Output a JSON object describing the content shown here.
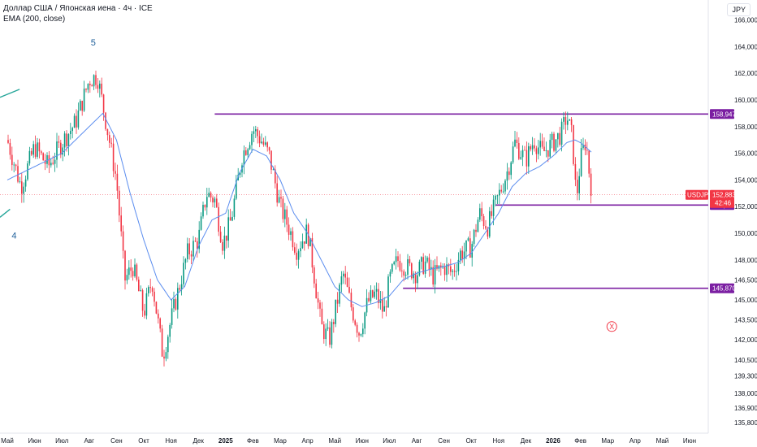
{
  "header": {
    "symbol_title": "Доллар США / Японская иена · 4ч · ICE",
    "indicator": "EMA (200, close)",
    "currency_button": "JPY"
  },
  "chart_data": {
    "type": "candlestick",
    "symbol": "USDJPY",
    "ylim": [
      135.0,
      167.5
    ],
    "y_ticks": [
      135.8,
      136.9,
      138.0,
      139.3,
      140.5,
      142.0,
      143.5,
      145.0,
      146.5,
      148.0,
      150.0,
      152.0,
      154.0,
      156.0,
      158.0,
      160.0,
      162.0,
      164.0,
      166.0
    ],
    "y_tick_labels": [
      "135,800",
      "136,900",
      "138,000",
      "139,300",
      "140,500",
      "142,000",
      "143,500",
      "145,000",
      "146,500",
      "148,000",
      "150,000",
      "152,000",
      "154,000",
      "156,000",
      "158,000",
      "160,000",
      "162,000",
      "164,000",
      "166,000"
    ],
    "x_tick_labels": [
      {
        "label": "Май",
        "bold": false
      },
      {
        "label": "Июн",
        "bold": false
      },
      {
        "label": "Июл",
        "bold": false
      },
      {
        "label": "Авг",
        "bold": false
      },
      {
        "label": "Сен",
        "bold": false
      },
      {
        "label": "Окт",
        "bold": false
      },
      {
        "label": "Ноя",
        "bold": false
      },
      {
        "label": "Дек",
        "bold": false
      },
      {
        "label": "2025",
        "bold": true
      },
      {
        "label": "Фев",
        "bold": false
      },
      {
        "label": "Мар",
        "bold": false
      },
      {
        "label": "Апр",
        "bold": false
      },
      {
        "label": "Май",
        "bold": false
      },
      {
        "label": "Июн",
        "bold": false
      },
      {
        "label": "Июл",
        "bold": false
      },
      {
        "label": "Авг",
        "bold": false
      },
      {
        "label": "Сен",
        "bold": false
      },
      {
        "label": "Окт",
        "bold": false
      },
      {
        "label": "Ноя",
        "bold": false
      },
      {
        "label": "Дек",
        "bold": false
      },
      {
        "label": "2026",
        "bold": true
      },
      {
        "label": "Фев",
        "bold": false
      },
      {
        "label": "Мар",
        "bold": false
      },
      {
        "label": "Апр",
        "bold": false
      },
      {
        "label": "Май",
        "bold": false
      },
      {
        "label": "Июн",
        "bold": false
      }
    ],
    "close_path": [
      [
        0,
        157.0
      ],
      [
        0.5,
        153.5
      ],
      [
        1.0,
        156.5
      ],
      [
        1.5,
        155.0
      ],
      [
        2.0,
        156.8
      ],
      [
        2.5,
        158.3
      ],
      [
        3.0,
        161.5
      ],
      [
        3.3,
        161.8
      ],
      [
        3.6,
        158.5
      ],
      [
        4.0,
        154.0
      ],
      [
        4.3,
        146.5
      ],
      [
        4.6,
        147.5
      ],
      [
        5.0,
        144.0
      ],
      [
        5.3,
        146.5
      ],
      [
        5.7,
        140.8
      ],
      [
        6.0,
        143.5
      ],
      [
        6.3,
        146.0
      ],
      [
        6.6,
        148.5
      ],
      [
        7.0,
        149.5
      ],
      [
        7.3,
        153.0
      ],
      [
        7.6,
        152.5
      ],
      [
        7.9,
        149.2
      ],
      [
        8.2,
        151.0
      ],
      [
        8.6,
        155.8
      ],
      [
        9.0,
        157.8
      ],
      [
        9.3,
        157.0
      ],
      [
        9.6,
        155.8
      ],
      [
        10.0,
        152.0
      ],
      [
        10.3,
        150.5
      ],
      [
        10.6,
        148.8
      ],
      [
        11.0,
        150.2
      ],
      [
        11.2,
        147.5
      ],
      [
        11.5,
        143.0
      ],
      [
        11.8,
        142.0
      ],
      [
        12.0,
        144.0
      ],
      [
        12.3,
        147.0
      ],
      [
        12.6,
        144.5
      ],
      [
        12.9,
        142.5
      ],
      [
        13.2,
        144.8
      ],
      [
        13.5,
        145.5
      ],
      [
        13.8,
        144.0
      ],
      [
        14.0,
        146.5
      ],
      [
        14.3,
        148.0
      ],
      [
        14.6,
        147.5
      ],
      [
        15.0,
        147.0
      ],
      [
        15.3,
        147.8
      ],
      [
        15.6,
        146.8
      ],
      [
        16.0,
        147.5
      ],
      [
        16.3,
        147.0
      ],
      [
        16.6,
        148.5
      ],
      [
        17.0,
        149.0
      ],
      [
        17.3,
        151.5
      ],
      [
        17.6,
        150.5
      ],
      [
        18.0,
        152.8
      ],
      [
        18.3,
        154.5
      ],
      [
        18.6,
        156.8
      ],
      [
        19.0,
        155.5
      ],
      [
        19.3,
        157.0
      ],
      [
        19.6,
        156.0
      ],
      [
        20.0,
        156.8
      ],
      [
        20.3,
        157.5
      ],
      [
        20.5,
        158.8
      ],
      [
        20.7,
        157.2
      ],
      [
        20.85,
        152.5
      ],
      [
        21.0,
        155.5
      ],
      [
        21.2,
        157.0
      ],
      [
        21.35,
        154.0
      ],
      [
        21.45,
        152.9
      ]
    ],
    "ema_path": [
      [
        0,
        154.0
      ],
      [
        1.0,
        155.0
      ],
      [
        2.0,
        156.0
      ],
      [
        3.0,
        158.0
      ],
      [
        3.5,
        159.0
      ],
      [
        4.0,
        157.0
      ],
      [
        4.5,
        153.0
      ],
      [
        5.0,
        149.5
      ],
      [
        5.5,
        146.5
      ],
      [
        6.0,
        145.0
      ],
      [
        6.5,
        146.0
      ],
      [
        7.0,
        149.0
      ],
      [
        7.5,
        151.0
      ],
      [
        8.0,
        151.5
      ],
      [
        8.5,
        154.5
      ],
      [
        9.0,
        156.3
      ],
      [
        9.5,
        155.8
      ],
      [
        10.0,
        154.0
      ],
      [
        10.5,
        151.5
      ],
      [
        11.0,
        150.0
      ],
      [
        11.5,
        148.0
      ],
      [
        12.0,
        146.0
      ],
      [
        12.5,
        145.0
      ],
      [
        13.0,
        144.5
      ],
      [
        13.5,
        144.8
      ],
      [
        14.0,
        145.3
      ],
      [
        14.5,
        146.5
      ],
      [
        15.0,
        147.0
      ],
      [
        15.5,
        147.3
      ],
      [
        16.0,
        147.5
      ],
      [
        16.5,
        147.8
      ],
      [
        17.0,
        148.5
      ],
      [
        17.5,
        150.0
      ],
      [
        18.0,
        151.5
      ],
      [
        18.5,
        153.5
      ],
      [
        19.0,
        154.5
      ],
      [
        19.5,
        155.0
      ],
      [
        20.0,
        155.8
      ],
      [
        20.5,
        156.8
      ],
      [
        20.8,
        157.0
      ],
      [
        21.0,
        156.8
      ],
      [
        21.45,
        156.0
      ]
    ],
    "horizontal_levels": [
      {
        "price": 158.947,
        "label": "158,947",
        "x_start": 7.6,
        "color": "#7b1fa2"
      },
      {
        "price": 152.117,
        "label": "152,117",
        "x_start": 17.9,
        "color": "#7b1fa2"
      },
      {
        "price": 145.87,
        "label": "145,870",
        "x_start": 14.5,
        "color": "#7b1fa2"
      }
    ],
    "current_price": {
      "symbol": "USDJPY",
      "price": 152.883,
      "label": "152,883",
      "countdown": "42:46",
      "color": "#f23645"
    },
    "wave_labels": [
      {
        "text": "5",
        "x": 3.15,
        "price": 164.1
      },
      {
        "text": "4",
        "x": 0.25,
        "price": 149.6
      }
    ],
    "projection_marker": {
      "text": "X",
      "x": 22.15,
      "price": 143.0,
      "color": "#f23645"
    },
    "colors": {
      "up": "#089981",
      "down": "#f23645",
      "ema": "#5b8def",
      "levels": "#7b1fa2",
      "trend": "#26a69a"
    }
  }
}
